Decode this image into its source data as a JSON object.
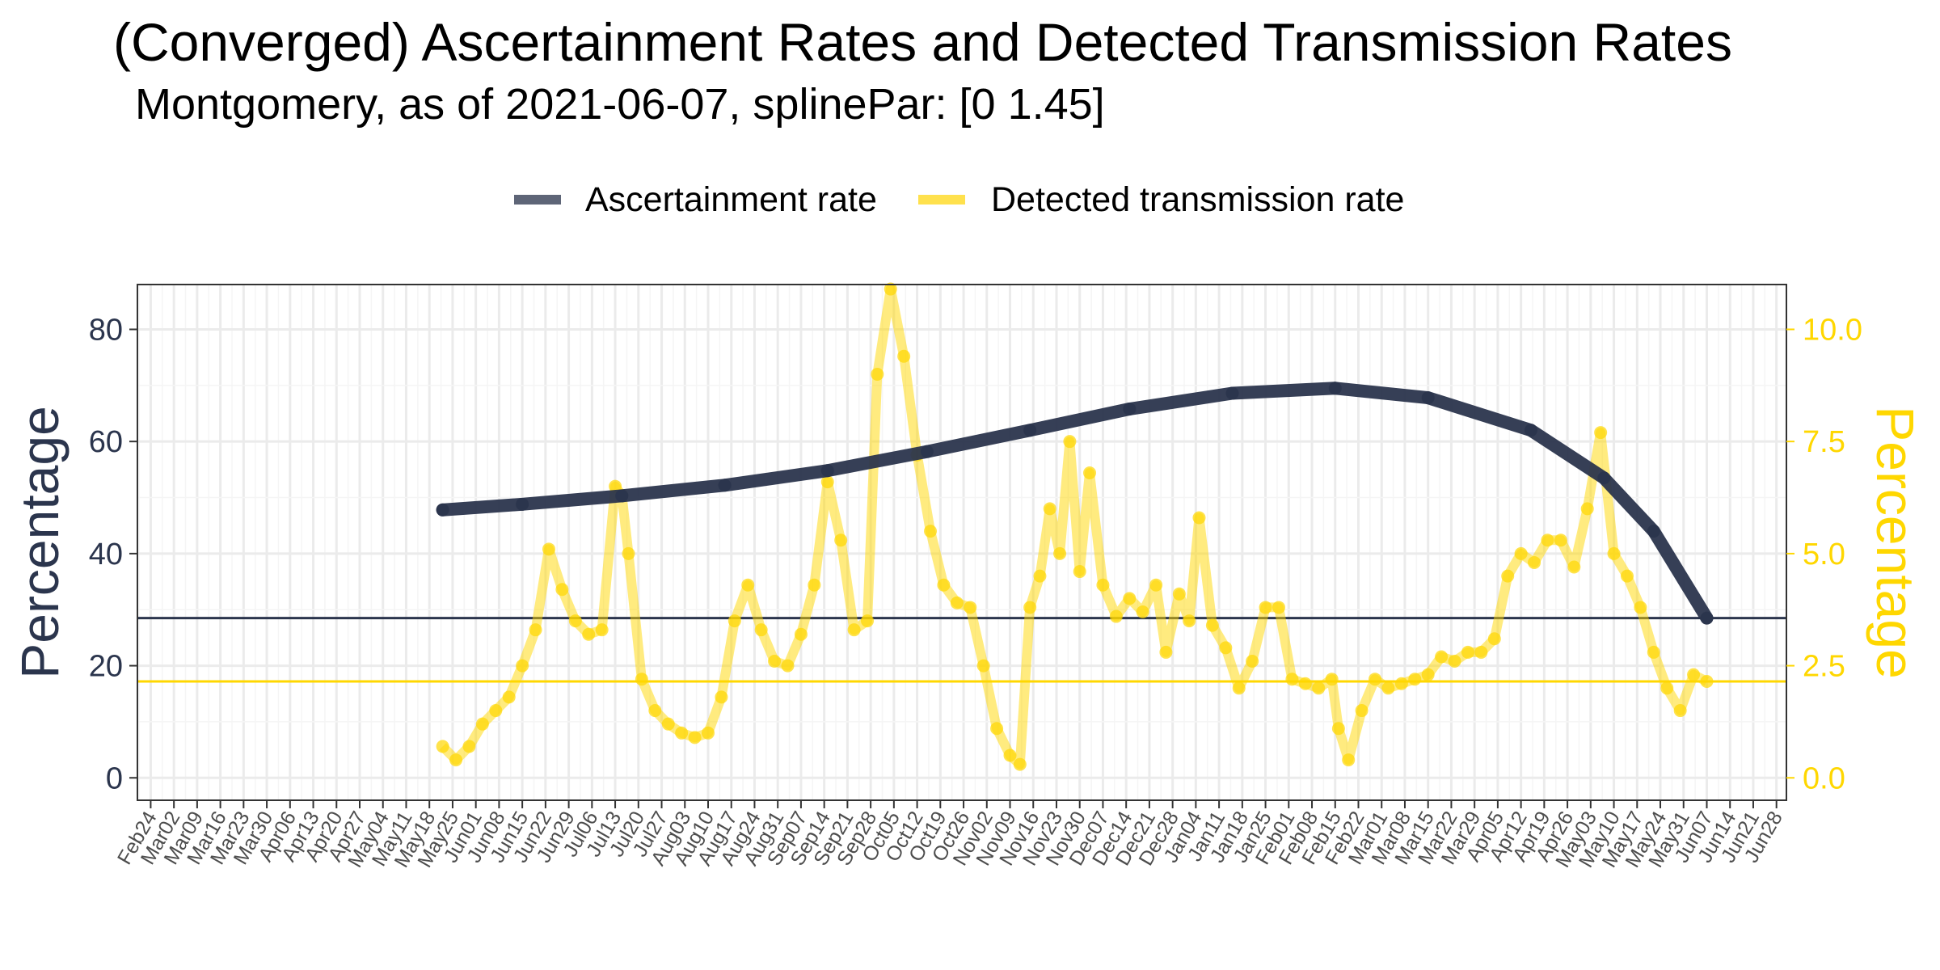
{
  "chart_data": {
    "type": "line",
    "title": "(Converged) Ascertainment Rates and Detected Transmission Rates",
    "subtitle": "Montgomery, as of 2021-06-07, splinePar: [0 1.45]",
    "ylabel": "Percentage",
    "ylabel_right": "Percentage",
    "ylim": [
      -4,
      88
    ],
    "ylim_right": [
      -0.5,
      11
    ],
    "y_ticks": [
      "0",
      "20",
      "40",
      "60",
      "80"
    ],
    "y_ticks_right": [
      "0.0",
      "2.5",
      "5.0",
      "7.5",
      "10.0"
    ],
    "x_range": [
      "2020-02-20",
      "2021-07-01"
    ],
    "x_tick_labels": [
      "Feb24",
      "Mar02",
      "Mar09",
      "Mar16",
      "Mar23",
      "Mar30",
      "Apr06",
      "Apr13",
      "Apr20",
      "Apr27",
      "May04",
      "May11",
      "May18",
      "May25",
      "Jun01",
      "Jun08",
      "Jun15",
      "Jun22",
      "Jun29",
      "Jul06",
      "Jul13",
      "Jul20",
      "Jul27",
      "Aug03",
      "Aug10",
      "Aug17",
      "Aug24",
      "Aug31",
      "Sep07",
      "Sep14",
      "Sep21",
      "Sep28",
      "Oct05",
      "Oct12",
      "Oct19",
      "Oct26",
      "Nov02",
      "Nov09",
      "Nov16",
      "Nov23",
      "Nov30",
      "Dec07",
      "Dec14",
      "Dec21",
      "Dec28",
      "Jan04",
      "Jan11",
      "Jan18",
      "Jan25",
      "Feb01",
      "Feb08",
      "Feb15",
      "Feb22",
      "Mar01",
      "Mar08",
      "Mar15",
      "Mar22",
      "Mar29",
      "Apr05",
      "Apr12",
      "Apr19",
      "Apr26",
      "May03",
      "May10",
      "May17",
      "May24",
      "May31",
      "Jun07",
      "Jun14",
      "Jun21",
      "Jun28"
    ],
    "grid": true,
    "legend_position": "top",
    "hlines": [
      {
        "axis": "left",
        "value": 28.5,
        "color": "#2b354d"
      },
      {
        "axis": "right",
        "value": 2.15,
        "color": "#ffd700"
      }
    ],
    "series": [
      {
        "name": "Ascertainment rate",
        "axis": "left",
        "color": "#2b354d",
        "x": [
          "2020-05-22",
          "2020-06-15",
          "2020-07-15",
          "2020-08-15",
          "2020-09-15",
          "2020-10-15",
          "2020-11-15",
          "2020-12-15",
          "2021-01-15",
          "2021-02-15",
          "2021-03-15",
          "2021-04-15",
          "2021-05-07",
          "2021-05-22",
          "2021-06-07"
        ],
        "y": [
          47.8,
          48.8,
          50.3,
          52.2,
          54.8,
          58.2,
          62.0,
          65.8,
          68.6,
          69.5,
          67.8,
          62.0,
          53.5,
          44.0,
          28.5
        ]
      },
      {
        "name": "Detected transmission rate",
        "axis": "right",
        "color": "#ffd700",
        "x": [
          "2020-05-22",
          "2020-05-26",
          "2020-05-30",
          "2020-06-03",
          "2020-06-07",
          "2020-06-11",
          "2020-06-15",
          "2020-06-19",
          "2020-06-23",
          "2020-06-27",
          "2020-07-01",
          "2020-07-05",
          "2020-07-09",
          "2020-07-13",
          "2020-07-15",
          "2020-07-17",
          "2020-07-21",
          "2020-07-25",
          "2020-07-29",
          "2020-08-02",
          "2020-08-06",
          "2020-08-10",
          "2020-08-14",
          "2020-08-18",
          "2020-08-22",
          "2020-08-26",
          "2020-08-30",
          "2020-09-03",
          "2020-09-07",
          "2020-09-11",
          "2020-09-15",
          "2020-09-19",
          "2020-09-23",
          "2020-09-27",
          "2020-09-30",
          "2020-10-04",
          "2020-10-08",
          "2020-10-12",
          "2020-10-16",
          "2020-10-20",
          "2020-10-24",
          "2020-10-28",
          "2020-11-01",
          "2020-11-05",
          "2020-11-09",
          "2020-11-12",
          "2020-11-15",
          "2020-11-18",
          "2020-11-21",
          "2020-11-24",
          "2020-11-27",
          "2020-11-30",
          "2020-12-03",
          "2020-12-07",
          "2020-12-11",
          "2020-12-15",
          "2020-12-19",
          "2020-12-23",
          "2020-12-26",
          "2020-12-30",
          "2021-01-02",
          "2021-01-05",
          "2021-01-09",
          "2021-01-13",
          "2021-01-17",
          "2021-01-21",
          "2021-01-25",
          "2021-01-29",
          "2021-02-02",
          "2021-02-06",
          "2021-02-10",
          "2021-02-14",
          "2021-02-16",
          "2021-02-19",
          "2021-02-23",
          "2021-02-27",
          "2021-03-03",
          "2021-03-07",
          "2021-03-11",
          "2021-03-15",
          "2021-03-19",
          "2021-03-23",
          "2021-03-27",
          "2021-03-31",
          "2021-04-04",
          "2021-04-08",
          "2021-04-12",
          "2021-04-16",
          "2021-04-20",
          "2021-04-24",
          "2021-04-28",
          "2021-05-02",
          "2021-05-06",
          "2021-05-10",
          "2021-05-14",
          "2021-05-18",
          "2021-05-22",
          "2021-05-26",
          "2021-05-30",
          "2021-06-03",
          "2021-06-07"
        ],
        "y": [
          0.7,
          0.4,
          0.7,
          1.2,
          1.5,
          1.8,
          2.5,
          3.3,
          5.1,
          4.2,
          3.5,
          3.2,
          3.3,
          6.5,
          6.3,
          5.0,
          2.2,
          1.5,
          1.2,
          1.0,
          0.9,
          1.0,
          1.8,
          3.5,
          4.3,
          3.3,
          2.6,
          2.5,
          3.2,
          4.3,
          6.6,
          5.3,
          3.3,
          3.5,
          9.0,
          10.9,
          9.4,
          7.2,
          5.5,
          4.3,
          3.9,
          3.8,
          2.5,
          1.1,
          0.5,
          0.3,
          3.8,
          4.5,
          6.0,
          5.0,
          7.5,
          4.6,
          6.8,
          4.3,
          3.6,
          4.0,
          3.7,
          4.3,
          2.8,
          4.1,
          3.5,
          5.8,
          3.4,
          2.9,
          2.0,
          2.6,
          3.8,
          3.8,
          2.2,
          2.1,
          2.0,
          2.2,
          1.1,
          0.4,
          1.5,
          2.2,
          2.0,
          2.1,
          2.2,
          2.3,
          2.7,
          2.6,
          2.8,
          2.8,
          3.1,
          4.5,
          5.0,
          4.8,
          5.3,
          5.3,
          4.7,
          6.0,
          7.7,
          5.0,
          4.5,
          3.8,
          2.8,
          2.0,
          1.5,
          2.3,
          2.15
        ]
      }
    ]
  }
}
